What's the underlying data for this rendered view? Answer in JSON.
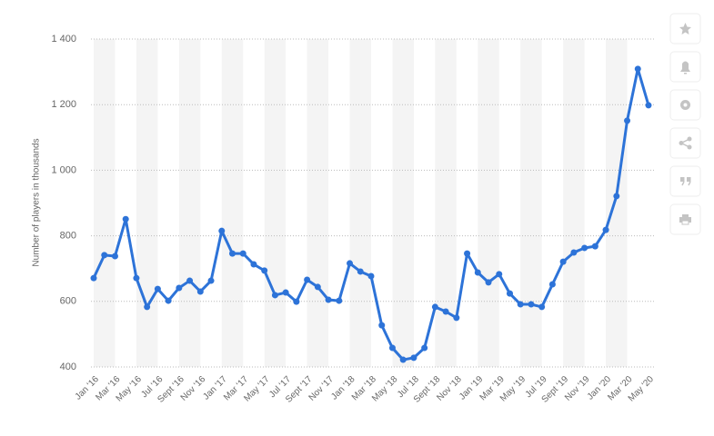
{
  "chart_data": {
    "type": "line",
    "y_label": "Number of players in thousands",
    "categories": [
      "Jan '16",
      null,
      "Mar '16",
      null,
      "May '16",
      null,
      "Jul '16",
      null,
      "Sept '16",
      null,
      "Nov '16",
      null,
      "Jan '17",
      null,
      "Mar '17",
      null,
      "May '17",
      null,
      "Jul '17",
      null,
      "Sept '17",
      null,
      "Nov '17",
      null,
      "Jan '18",
      null,
      "Mar '18",
      null,
      "May '18",
      null,
      "Jul '18",
      null,
      "Sept '18",
      null,
      "Nov '18",
      null,
      "Jan '19",
      null,
      "Mar '19",
      null,
      "May '19",
      null,
      "Jul '19",
      null,
      "Sept '19",
      null,
      "Nov '19",
      null,
      "Jan '20",
      null,
      "Mar '20",
      null,
      "May '20"
    ],
    "values": [
      671,
      741,
      738,
      851,
      671,
      583,
      638,
      602,
      641,
      663,
      630,
      663,
      815,
      746,
      746,
      713,
      694,
      619,
      627,
      599,
      666,
      644,
      605,
      602,
      716,
      691,
      677,
      527,
      458,
      422,
      428,
      458,
      583,
      569,
      550,
      746,
      688,
      658,
      683,
      624,
      591,
      591,
      583,
      652,
      721,
      749,
      763,
      768,
      818,
      921,
      1151,
      1309,
      1198
    ],
    "color": "#2d73d8",
    "ylim": [
      400,
      1400
    ],
    "yticks": [
      400,
      600,
      800,
      {
        "value": 1000,
        "label": "1 000"
      },
      {
        "value": 1200,
        "label": "1 200"
      },
      {
        "value": 1400,
        "label": "1 400"
      }
    ],
    "grid": true
  }
}
